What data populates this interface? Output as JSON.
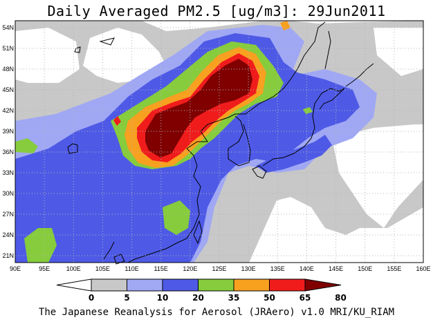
{
  "title": "Daily Averaged PM2.5 [ug/m3]: 29Jun2011",
  "credit": "The Japanese Reanalysis for Aerosol (JRAero) v1.0 MRI/KU_RIAM",
  "map": {
    "lon_labels": [
      "90E",
      "95E",
      "100E",
      "105E",
      "110E",
      "115E",
      "120E",
      "125E",
      "130E",
      "135E",
      "140E",
      "145E",
      "150E",
      "155E",
      "160E"
    ],
    "lat_labels": [
      "54N",
      "51N",
      "48N",
      "45N",
      "42N",
      "39N",
      "36N",
      "33N",
      "30N",
      "27N",
      "24N",
      "21N"
    ],
    "lon_range": [
      90,
      160
    ],
    "lat_range": [
      20,
      55
    ]
  },
  "colorbar": {
    "ticks": [
      "0",
      "5",
      "10",
      "20",
      "35",
      "50",
      "65",
      "80"
    ],
    "colors": [
      "#ffffff",
      "#c8c8c8",
      "#a0a8f4",
      "#4e5ae6",
      "#86cc3c",
      "#f8a020",
      "#f01c1c",
      "#800000"
    ]
  },
  "colors": {
    "c1": "#c8c8c8",
    "c2": "#a0a8f4",
    "c3": "#4e5ae6",
    "c4": "#86cc3c",
    "c5": "#f8a020",
    "c6": "#f01c1c",
    "c7": "#800000",
    "coast": "#000000",
    "grid": "#b4b4b4"
  }
}
